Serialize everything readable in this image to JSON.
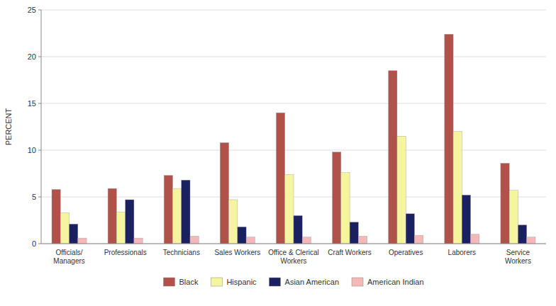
{
  "chart_data": {
    "type": "bar",
    "categories": [
      "Officials/ Managers",
      "Professionals",
      "Technicians",
      "Sales Workers",
      "Office & Clerical Workers",
      "Craft Workers",
      "Operatives",
      "Laborers",
      "Service Workers"
    ],
    "series": [
      {
        "name": "Black",
        "color": "#b0524a",
        "values": [
          5.8,
          5.9,
          7.3,
          10.8,
          14.0,
          9.8,
          18.5,
          22.4,
          8.6
        ]
      },
      {
        "name": "Hispanic",
        "color": "#f5f5a0",
        "values": [
          3.3,
          3.4,
          5.9,
          4.7,
          7.4,
          7.6,
          11.5,
          12.0,
          5.7
        ]
      },
      {
        "name": "Asian American",
        "color": "#1a2060",
        "values": [
          2.1,
          4.7,
          6.8,
          1.8,
          3.0,
          2.3,
          3.2,
          5.2,
          2.0
        ]
      },
      {
        "name": "American Indian",
        "color": "#f5b8b8",
        "values": [
          0.6,
          0.6,
          0.8,
          0.7,
          0.7,
          0.8,
          0.9,
          1.0,
          0.7
        ]
      }
    ],
    "ylabel": "PERCENT",
    "ylim": [
      0,
      25
    ],
    "yticks": [
      0,
      5,
      10,
      15,
      20,
      25
    ],
    "grid": true,
    "legend": "bottom"
  }
}
